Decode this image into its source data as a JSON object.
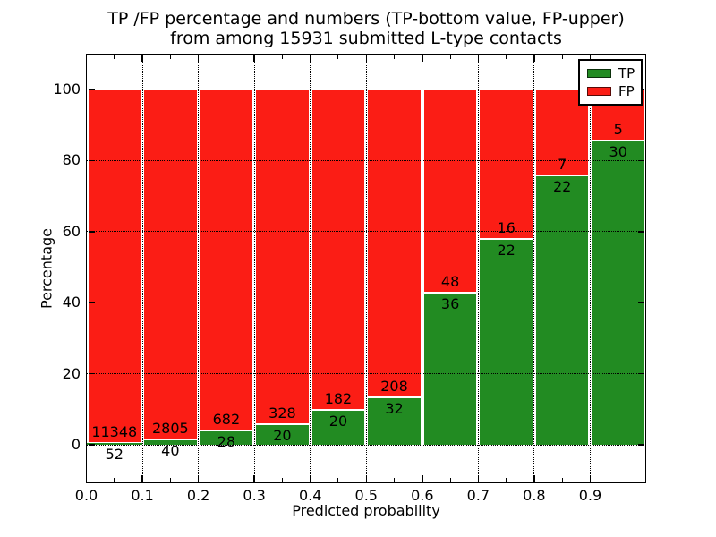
{
  "title": {
    "line1": "TP /FP percentage and numbers (TP-bottom value, FP-upper)",
    "line2": "from among 15931 submitted L-type contacts"
  },
  "axes": {
    "xlabel": "Predicted probability",
    "ylabel": "Percentage",
    "yticks": [
      "0",
      "20",
      "40",
      "60",
      "80",
      "100"
    ],
    "xticks": [
      "0.0",
      "0.1",
      "0.2",
      "0.3",
      "0.4",
      "0.5",
      "0.6",
      "0.7",
      "0.8",
      "0.9"
    ]
  },
  "legend": {
    "items": [
      {
        "label": "TP",
        "color": "#228b22"
      },
      {
        "label": "FP",
        "color": "#fb1d15"
      }
    ]
  },
  "colors": {
    "tp_green": "#228b22",
    "fp_red": "#fb1d15",
    "grid": "#000000",
    "bar_edge": "#ffffff",
    "background": "#ffffff"
  },
  "chart_data": {
    "type": "bar",
    "stacked": true,
    "normalized": "each 0.1-wide probability bin scaled to 100%",
    "title": "TP /FP percentage and numbers (TP-bottom value, FP-upper) from among 15931 submitted L-type contacts",
    "xlabel": "Predicted probability",
    "ylabel": "Percentage",
    "xlim": [
      0.0,
      1.0
    ],
    "ylim": [
      -10.8,
      110
    ],
    "grid": true,
    "legend_position": "upper right",
    "bin_starts": [
      0.0,
      0.1,
      0.2,
      0.3,
      0.4,
      0.5,
      0.6,
      0.7,
      0.8,
      0.9
    ],
    "bin_width": 0.1,
    "series": [
      {
        "name": "TP",
        "color": "#228b22",
        "counts": [
          52,
          40,
          28,
          20,
          20,
          32,
          36,
          22,
          22,
          30
        ]
      },
      {
        "name": "FP",
        "color": "#fb1d15",
        "counts": [
          11348,
          2805,
          682,
          328,
          182,
          208,
          48,
          16,
          7,
          5
        ]
      }
    ],
    "tp_percent": [
      0.46,
      1.41,
      3.94,
      5.75,
      9.9,
      13.33,
      42.86,
      57.89,
      75.86,
      85.71
    ],
    "total_contacts": 15931
  }
}
